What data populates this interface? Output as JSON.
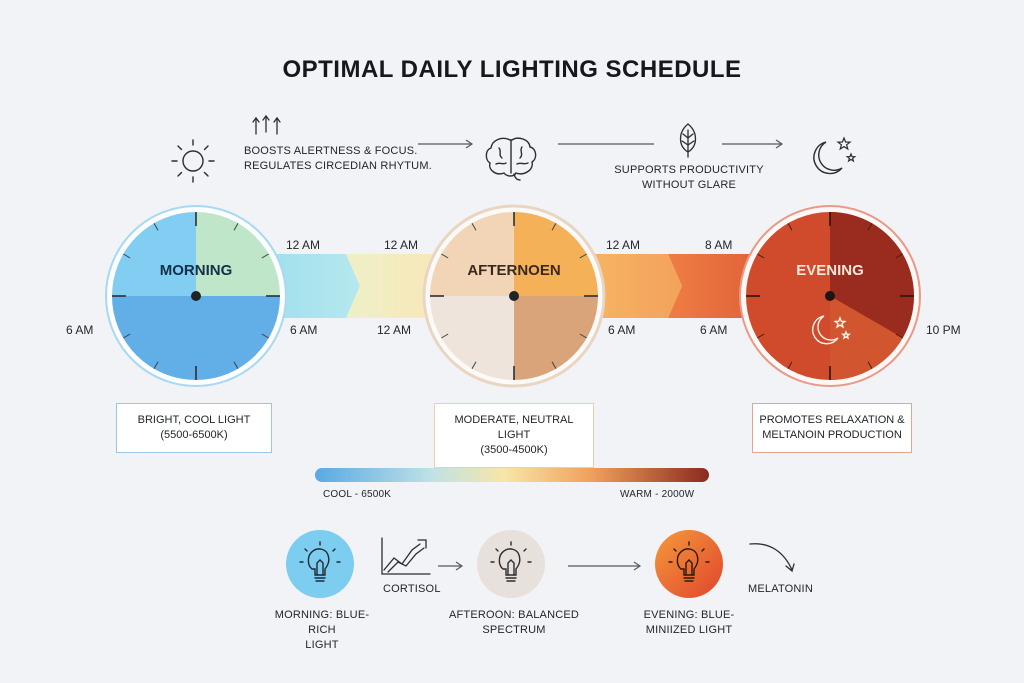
{
  "title": "OPTIMAL DAILY LIGHTING SCHEDULE",
  "top_row": {
    "sun_icon": "sun-icon",
    "arrows_icon": "up-arrows-icon",
    "alertness_text_1": "BOOSTS ALERTNESS & FOCUS.",
    "alertness_text_2": "REGULATES CIRCEDIAN RHYTUM.",
    "brain_icon": "brain-icon",
    "leaf_icon": "leaf-icon",
    "productivity_text_1": "SUPPORTS PRODUCTIVITY",
    "productivity_text_2": "WITHOUT GLARE",
    "moon_icon": "moon-stars-icon"
  },
  "phases": [
    {
      "name": "MORNING",
      "label_1": "BRIGHT, COOL LIGHT",
      "label_2": "(5500-6500K)",
      "color": "#5aade6"
    },
    {
      "name": "AFTERNOEN",
      "label_1": "MODERATE, NEUTRAL LIGHT",
      "label_2": "(3500-4500K)",
      "color": "#f2b35e"
    },
    {
      "name": "EVENING",
      "label_1": "PROMOTES RELAXATION &",
      "label_2": "MELTANOIN PRODUCTION",
      "color": "#c4452a"
    }
  ],
  "times": {
    "morning_start": "6 AM",
    "band1_top_left": "12 AM",
    "band1_bottom_left": "6 AM",
    "band2_top_right": "12 AM",
    "band2_bottom_right": "12 AM",
    "band3_top_left": "12 AM",
    "band3_bottom_left": "6 AM",
    "band4_top_right": "8 AM",
    "band4_bottom_right": "6 AM",
    "evening_end": "10 PM"
  },
  "gradient": {
    "cool_label": "COOL - 6500K",
    "warm_label": "WARM - 2000W",
    "cool_color": "#5aa9e4",
    "mid_color": "#f7e6a8",
    "warm_color": "#8a2a1e"
  },
  "bottom_row": {
    "morning_bulb_label_1": "MORNING: BLUE-RICH",
    "morning_bulb_label_2": "LIGHT",
    "cortisol_label": "CORTISOL",
    "afternoon_bulb_label": "AFTEROON: BALANCED SPECTRUM",
    "evening_bulb_label_1": "EVENING: BLUE-",
    "evening_bulb_label_2": "MINIIZED LIGHT",
    "melatonin_label": "MELATONIN"
  }
}
